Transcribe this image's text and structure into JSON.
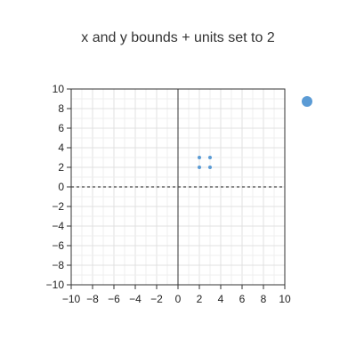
{
  "chart_data": {
    "type": "scatter",
    "title": "x and y bounds + units set to 2",
    "xlabel": "",
    "ylabel": "",
    "xlim": [
      -10,
      10
    ],
    "ylim": [
      -10,
      10
    ],
    "x_ticks": [
      -10,
      -8,
      -6,
      -4,
      -2,
      0,
      2,
      4,
      6,
      8,
      10
    ],
    "y_ticks": [
      -10,
      -8,
      -6,
      -4,
      -2,
      0,
      2,
      4,
      6,
      8,
      10
    ],
    "x_tick_labels": [
      "−10",
      "−8",
      "−6",
      "−4",
      "−2",
      "0",
      "2",
      "4",
      "6",
      "8",
      "10"
    ],
    "y_tick_labels": [
      "−10",
      "−8",
      "−6",
      "−4",
      "−2",
      "0",
      "2",
      "4",
      "6",
      "8",
      "10"
    ],
    "minor_grid_step": 1,
    "grid": true,
    "dashed_reference_line_y": 0,
    "series": [
      {
        "x": [
          2,
          3,
          2,
          3
        ],
        "y": [
          3,
          3,
          2,
          2
        ],
        "color": "#5b9bd5"
      }
    ],
    "legend_marker": {
      "color": "#5b9bd5",
      "placement": "right"
    }
  }
}
